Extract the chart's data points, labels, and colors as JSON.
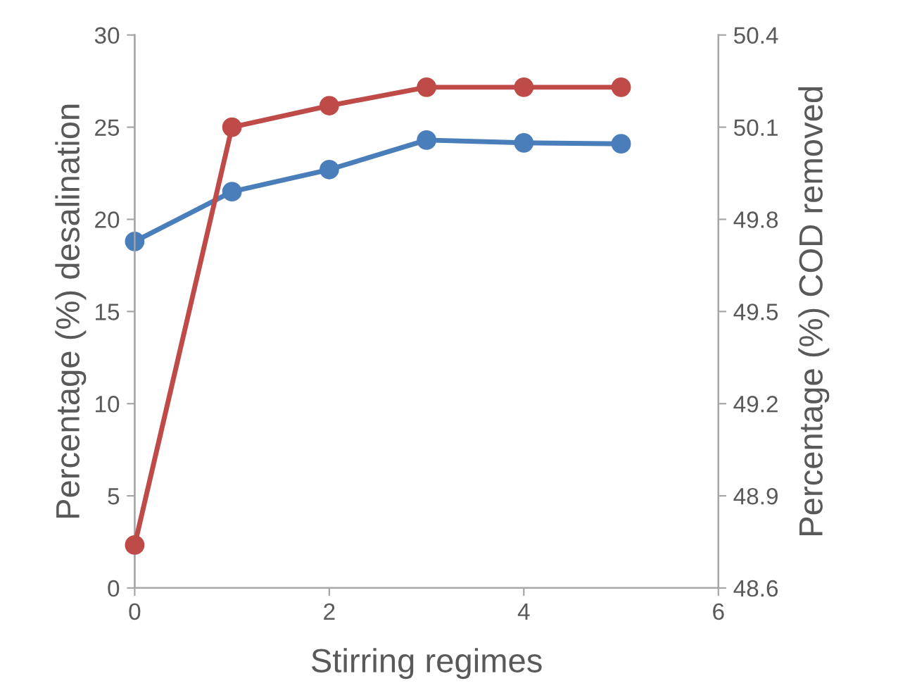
{
  "chart_data": {
    "type": "line",
    "xlabel": "Stirring regimes",
    "ylabel": "Percentage (%) desalination",
    "y2label": "Percentage (%) COD removed",
    "x": [
      0,
      1,
      2,
      3,
      4,
      5
    ],
    "series": [
      {
        "color": "#4a7ebb",
        "values": [
          18.8,
          21.5,
          22.7,
          24.3,
          24.15,
          24.1
        ]
      },
      {
        "color": "#be4b48",
        "axis": "y2",
        "values": [
          48.74,
          50.1,
          50.17,
          50.23,
          50.23,
          50.23
        ]
      }
    ],
    "xlim": [
      0,
      6
    ],
    "xticks": [
      0,
      2,
      4,
      6
    ],
    "ylim": [
      0,
      30
    ],
    "yticks": [
      0,
      5,
      10,
      15,
      20,
      25,
      30
    ],
    "y2lim": [
      48.6,
      50.4
    ],
    "y2ticks": [
      48.6,
      48.9,
      49.2,
      49.5,
      49.8,
      50.1,
      50.4
    ],
    "marker": "circle",
    "line_style": "solid",
    "grid": false,
    "legend": false
  }
}
